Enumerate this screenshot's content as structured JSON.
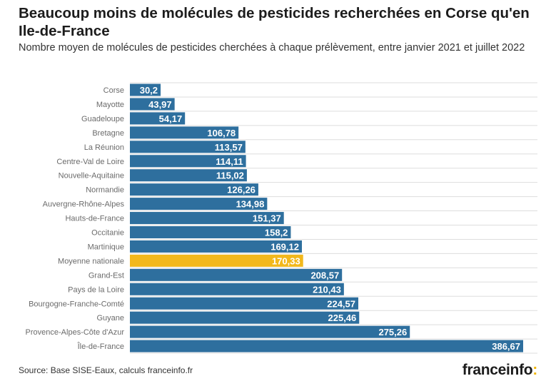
{
  "chart_data": {
    "type": "bar",
    "orientation": "horizontal",
    "title": "Beaucoup moins de molécules de pesticides recherchées en Corse qu'en Ile-de-France",
    "subtitle": "Nombre moyen de molécules de pesticides cherchées à chaque prélèvement, entre janvier 2021 et juillet 2022",
    "categories": [
      "Corse",
      "Mayotte",
      "Guadeloupe",
      "Bretagne",
      "La Réunion",
      "Centre-Val de Loire",
      "Nouvelle-Aquitaine",
      "Normandie",
      "Auvergne-Rhône-Alpes",
      "Hauts-de-France",
      "Occitanie",
      "Martinique",
      "Moyenne nationale",
      "Grand-Est",
      "Pays de la Loire",
      "Bourgogne-Franche-Comté",
      "Guyane",
      "Provence-Alpes-Côte d'Azur",
      "Île-de-France"
    ],
    "values": [
      30.2,
      43.97,
      54.17,
      106.78,
      113.57,
      114.11,
      115.02,
      126.26,
      134.98,
      151.37,
      158.2,
      169.12,
      170.33,
      208.57,
      210.43,
      224.57,
      225.46,
      275.26,
      386.67
    ],
    "labels": [
      "30,2",
      "43,97",
      "54,17",
      "106,78",
      "113,57",
      "114,11",
      "115,02",
      "126,26",
      "134,98",
      "151,37",
      "158,2",
      "169,12",
      "170,33",
      "208,57",
      "210,43",
      "224,57",
      "225,46",
      "275,26",
      "386,67"
    ],
    "highlight": "Moyenne nationale",
    "xlim": [
      0,
      400
    ],
    "grid": true,
    "colors": {
      "bar": "#2e6f9e",
      "highlight": "#f2b81c",
      "grid": "#dddddd"
    }
  },
  "source": "Source: Base SISE-Eaux, calculs franceinfo.fr",
  "logo": {
    "text": "franceinfo",
    "suffix": ":"
  }
}
